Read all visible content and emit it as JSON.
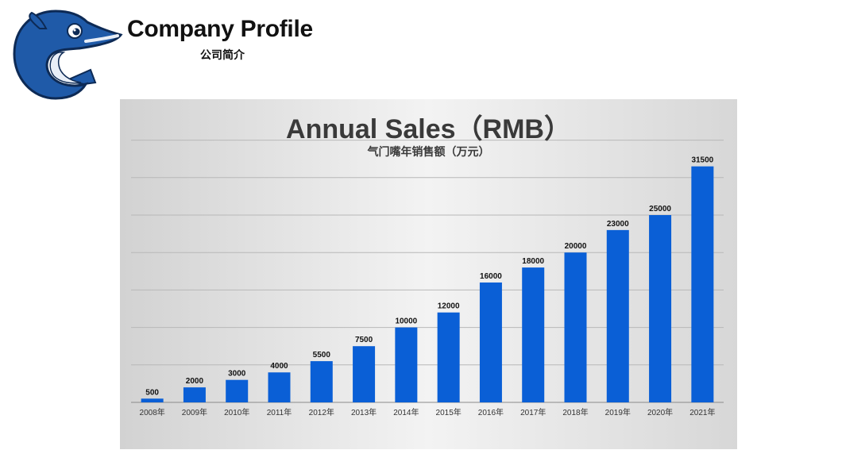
{
  "header": {
    "title": "Company Profile",
    "subtitle": "公司简介"
  },
  "logo": {
    "icon": "dolphin-logo-icon"
  },
  "colors": {
    "bar": "#0a5fd6",
    "logo_blue": "#1f5aa8",
    "logo_dark": "#0d2a55",
    "grid": "#b8b8b8"
  },
  "chart_data": {
    "type": "bar",
    "title": "Annual Sales（RMB）",
    "subtitle": "气门嘴年销售额（万元）",
    "xlabel": "",
    "ylabel": "",
    "ylim": [
      0,
      35000
    ],
    "grid": true,
    "categories": [
      "2008年",
      "2009年",
      "2010年",
      "2011年",
      "2012年",
      "2013年",
      "2014年",
      "2015年",
      "2016年",
      "2017年",
      "2018年",
      "2019年",
      "2020年",
      "2021年"
    ],
    "values": [
      500,
      2000,
      3000,
      4000,
      5500,
      7500,
      10000,
      12000,
      16000,
      18000,
      20000,
      23000,
      25000,
      31500
    ]
  }
}
